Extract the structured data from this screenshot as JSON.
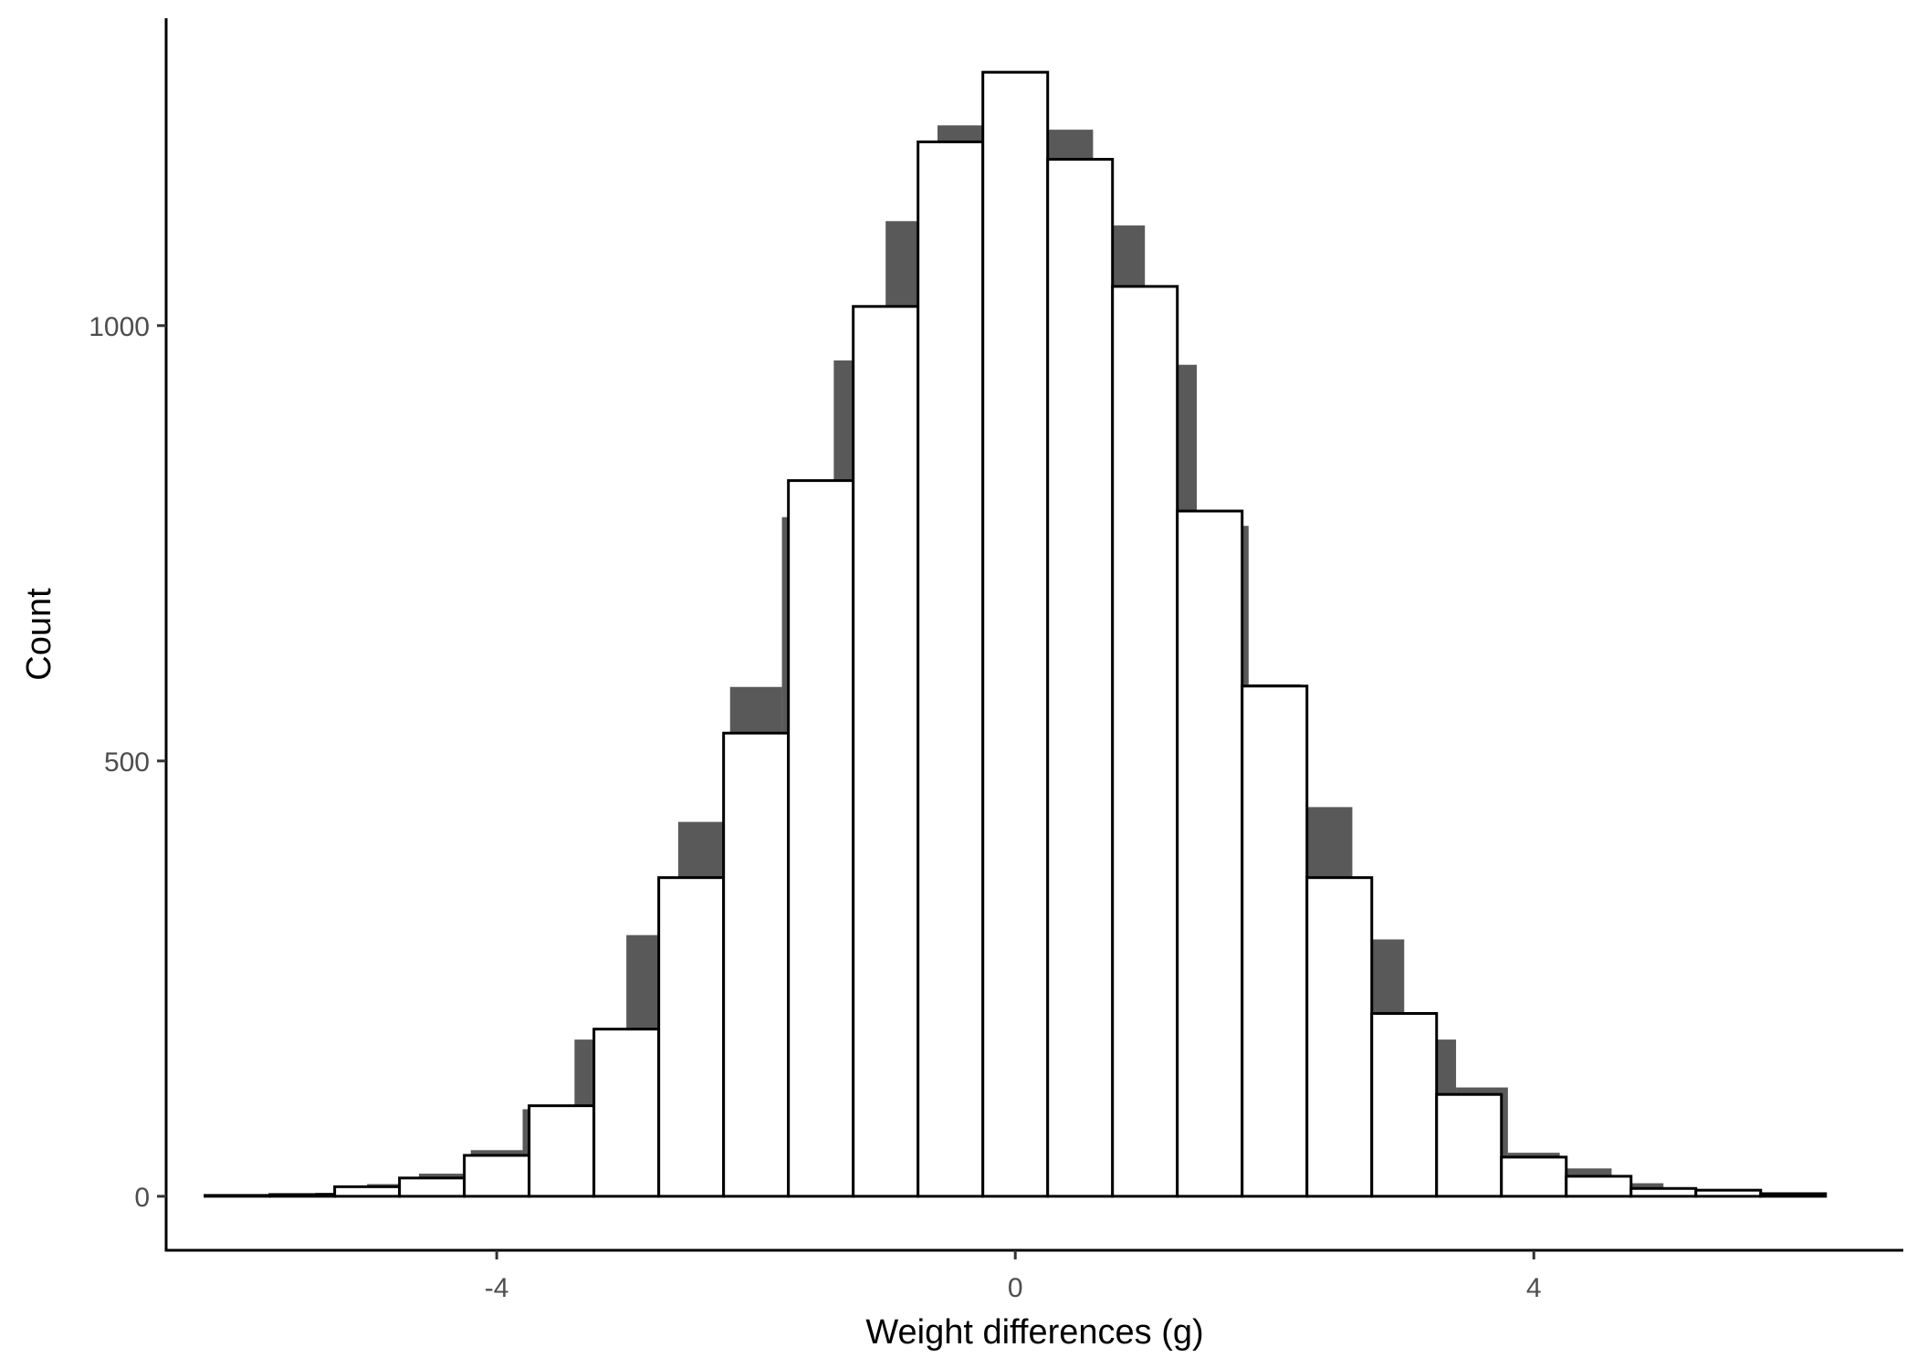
{
  "chart_data": {
    "type": "bar",
    "subtype": "overlaid-histogram",
    "xlabel": "Weight differences (g)",
    "ylabel": "Count",
    "xlim": [
      -6.55,
      6.85
    ],
    "ylim": [
      -62,
      1353
    ],
    "x_ticks": [
      -4,
      0,
      4
    ],
    "y_ticks": [
      0,
      500,
      1000
    ],
    "grid": false,
    "legend": "none",
    "bin_width": 0.5,
    "series": [
      {
        "style": "filled",
        "color": "#595959",
        "bin_width": 0.4,
        "x": [
          -5.6,
          -5.2,
          -4.8,
          -4.4,
          -4.0,
          -3.6,
          -3.2,
          -2.8,
          -2.4,
          -2.0,
          -1.6,
          -1.2,
          -0.8,
          -0.4,
          0.0,
          0.4,
          0.8,
          1.2,
          1.6,
          2.0,
          2.4,
          2.8,
          3.2,
          3.6,
          4.0,
          4.4,
          4.8,
          5.2,
          5.6
        ],
        "values": [
          1,
          4,
          14,
          26,
          53,
          100,
          180,
          300,
          430,
          585,
          780,
          960,
          1120,
          1230,
          1260,
          1225,
          1115,
          955,
          770,
          588,
          447,
          295,
          180,
          125,
          50,
          32,
          15,
          6,
          2
        ]
      },
      {
        "style": "outline",
        "color": "#000000",
        "fill": "#ffffff",
        "x": [
          -6.0,
          -5.5,
          -5.0,
          -4.5,
          -4.0,
          -3.5,
          -3.0,
          -2.5,
          -2.0,
          -1.5,
          -1.0,
          -0.5,
          0.0,
          0.5,
          1.0,
          1.5,
          2.0,
          2.5,
          3.0,
          3.5,
          4.0,
          4.5,
          5.0,
          5.5,
          6.0
        ],
        "values": [
          1,
          2,
          11,
          21,
          47,
          104,
          192,
          366,
          532,
          822,
          1022,
          1211,
          1291,
          1191,
          1045,
          787,
          586,
          366,
          210,
          117,
          45,
          23,
          9,
          7,
          3
        ]
      }
    ]
  }
}
